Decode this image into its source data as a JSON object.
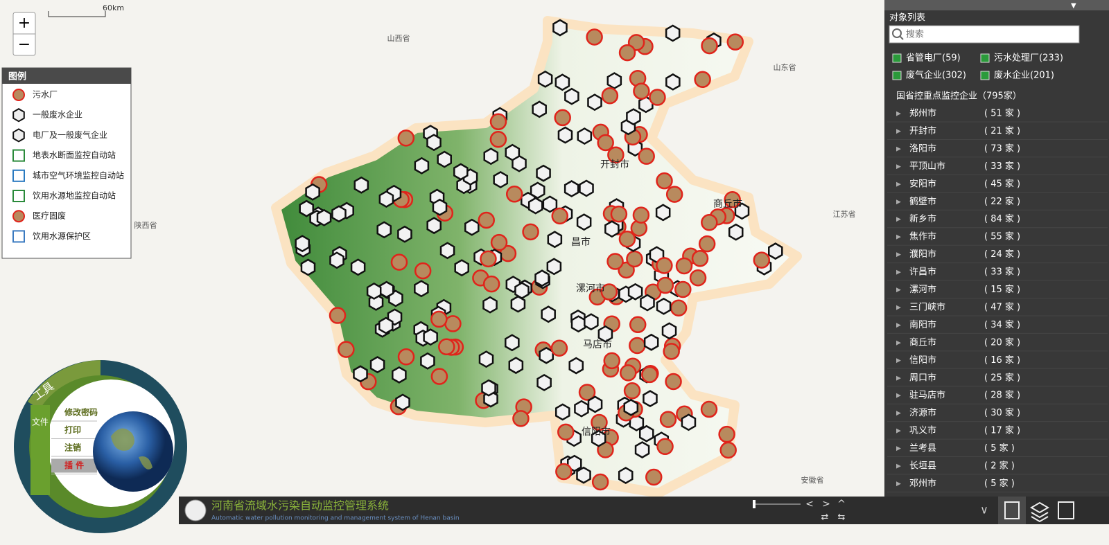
{
  "map": {
    "scale": "60km",
    "provinces": [
      "山西省",
      "山东省",
      "陕西省",
      "江苏省",
      "安徽省"
    ],
    "cities": [
      "开封市",
      "商丘市",
      "漯河市",
      "信阳市",
      "马店市",
      "昌市"
    ]
  },
  "legend": {
    "title": "图例",
    "items": [
      "污水厂",
      "一般废水企业",
      "电厂及一般废气企业",
      "地表水断面监控自动站",
      "城市空气环境监控自动站",
      "饮用水源地监控自动站",
      "医疗固废",
      "饮用水源保护区"
    ]
  },
  "tools": {
    "tab": "工具",
    "file": "文件",
    "menu": [
      "修改密码",
      "打印",
      "注销",
      "插 件"
    ]
  },
  "panel": {
    "title": "对象列表",
    "search": "搜索",
    "filters": [
      "省管电厂(59)",
      "污水处理厂(233)",
      "废气企业(302)",
      "废水企业(201)"
    ],
    "group": "国省控重点监控企业（795家）",
    "rows": [
      [
        "郑州市",
        "( 51 家 )"
      ],
      [
        "开封市",
        "( 21 家 )"
      ],
      [
        "洛阳市",
        "( 73 家 )"
      ],
      [
        "平顶山市",
        "( 33 家 )"
      ],
      [
        "安阳市",
        "( 45 家 )"
      ],
      [
        "鹤壁市",
        "( 22 家 )"
      ],
      [
        "新乡市",
        "( 84 家 )"
      ],
      [
        "焦作市",
        "( 55 家 )"
      ],
      [
        "濮阳市",
        "( 24 家 )"
      ],
      [
        "许昌市",
        "( 33 家 )"
      ],
      [
        "漯河市",
        "( 15 家 )"
      ],
      [
        "三门峡市",
        "( 47 家 )"
      ],
      [
        "南阳市",
        "( 34 家 )"
      ],
      [
        "商丘市",
        "( 20 家 )"
      ],
      [
        "信阳市",
        "( 16 家 )"
      ],
      [
        "周口市",
        "( 25 家 )"
      ],
      [
        "驻马店市",
        "( 28 家 )"
      ],
      [
        "济源市",
        "( 30 家 )"
      ],
      [
        "巩义市",
        "( 17 家 )"
      ],
      [
        "兰考县",
        "( 5 家 )"
      ],
      [
        "长垣县",
        "( 2 家 )"
      ],
      [
        "邓州市",
        "( 5 家 )"
      ]
    ]
  },
  "footer": {
    "title": "河南省流域水污染自动监控管理系统",
    "subtitle": "Automatic water pollution monitoring and management system of Henan basin"
  }
}
